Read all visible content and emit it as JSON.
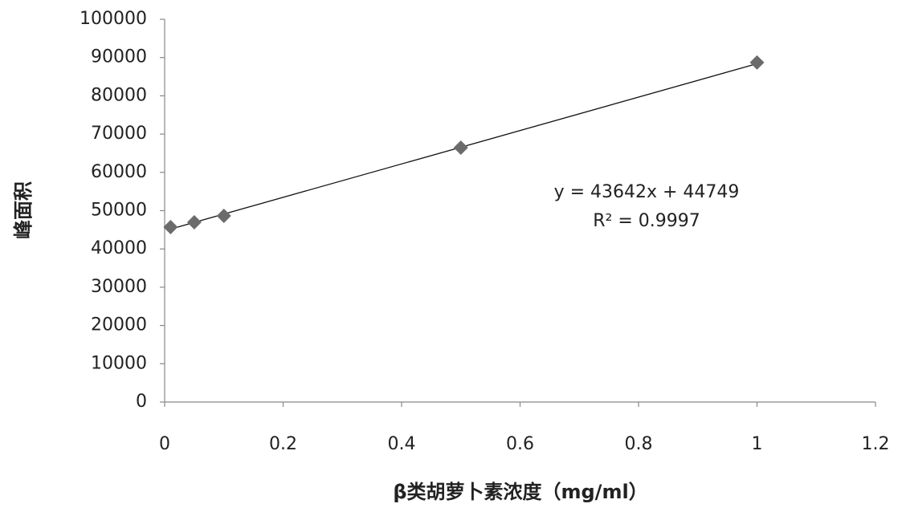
{
  "chart_data": {
    "type": "scatter",
    "x_label": "β类胡萝卜素浓度（mg/ml）",
    "y_label": "峰面积",
    "x": [
      0.01,
      0.05,
      0.1,
      0.5,
      1
    ],
    "values": [
      45700,
      46950,
      48650,
      66450,
      88700
    ],
    "color": "#6b6b6b",
    "xlim": [
      0,
      1.2
    ],
    "xticks": [
      0,
      0.2,
      0.4,
      0.6,
      0.8,
      1,
      1.2
    ],
    "ylim": [
      0,
      100000
    ],
    "yticks": [
      0,
      10000,
      20000,
      30000,
      40000,
      50000,
      60000,
      70000,
      80000,
      90000,
      100000
    ],
    "grid": false,
    "trendline": {
      "slope": 43642,
      "intercept": 44749,
      "equation": "y = 43642x + 44749",
      "r2": "R² = 0.9997"
    }
  }
}
